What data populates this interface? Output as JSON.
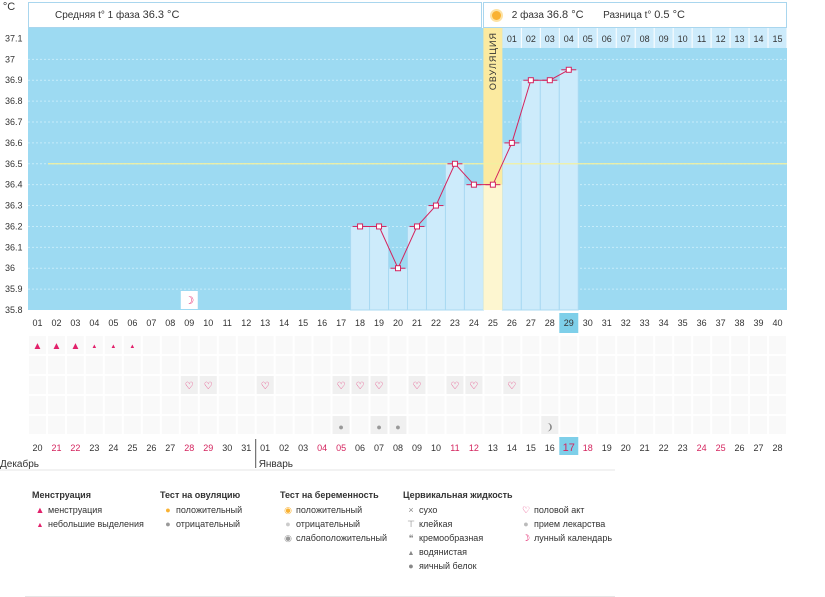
{
  "ylabel": "°C",
  "yticks": [
    "37.1",
    "37",
    "36.9",
    "36.8",
    "36.7",
    "36.6",
    "36.5",
    "36.4",
    "36.3",
    "36.2",
    "36.1",
    "36",
    "35.9",
    "35.8"
  ],
  "phase1": {
    "label": "Средняя t° 1 фаза",
    "value": "36.3 °C"
  },
  "phase2": {
    "label": "2 фаза",
    "value": "36.8 °C"
  },
  "diff": {
    "label": "Разница t°",
    "value": "0.5 °C"
  },
  "ovulation_label": "ОВУЛЯЦИЯ",
  "cycle_days": [
    "01",
    "02",
    "03",
    "04",
    "05",
    "06",
    "07",
    "08",
    "09",
    "10",
    "11",
    "12",
    "13",
    "14",
    "15",
    "16",
    "17",
    "18",
    "19",
    "20",
    "21",
    "22",
    "23",
    "24",
    "25",
    "26",
    "27",
    "28",
    "29",
    "30",
    "31",
    "32",
    "33",
    "34",
    "35",
    "36",
    "37",
    "38",
    "39",
    "40"
  ],
  "post_ovulation_days": [
    "01",
    "02",
    "03",
    "04",
    "05",
    "06",
    "07",
    "08",
    "09",
    "10",
    "11",
    "12",
    "13",
    "14",
    "15"
  ],
  "current_cycle_day": 29,
  "ovulation_day": 25,
  "calendar_dates": [
    "20",
    "21",
    "22",
    "23",
    "24",
    "25",
    "26",
    "27",
    "28",
    "29",
    "30",
    "31",
    "01",
    "02",
    "03",
    "04",
    "05",
    "06",
    "07",
    "08",
    "09",
    "10",
    "11",
    "12",
    "13",
    "14",
    "15",
    "16",
    "17",
    "18",
    "19",
    "20",
    "21",
    "22",
    "23",
    "24",
    "25",
    "26",
    "27",
    "28"
  ],
  "red_dates_idx": [
    1,
    2,
    8,
    9,
    15,
    16,
    22,
    23,
    28,
    29,
    35,
    36
  ],
  "month_dec": "Декабрь",
  "month_jan": "Январь",
  "colors": {
    "plot_bg": "#9ddaf2",
    "bar_fill": "#cdebfb",
    "line": "#d4245e",
    "ovulation": "#fbeaa0",
    "avg_line": "#f2f0a0",
    "today": "#7ecfe9"
  },
  "chart_data": {
    "type": "line",
    "title": "",
    "xlabel": "",
    "ylabel": "°C",
    "ylim": [
      35.8,
      37.15
    ],
    "x": [
      18,
      19,
      20,
      21,
      22,
      23,
      24,
      25,
      26,
      27,
      28,
      29
    ],
    "y": [
      36.2,
      36.2,
      36.0,
      36.2,
      36.3,
      36.5,
      36.4,
      36.4,
      36.6,
      36.9,
      36.9,
      36.95
    ],
    "average_line": 36.5,
    "ovulation_day": 25
  },
  "marks": {
    "menstruation": [
      1,
      2,
      3
    ],
    "light_discharge": [
      4,
      5,
      6
    ],
    "lunar": [
      9
    ],
    "intercourse": [
      9,
      10,
      13,
      17,
      18,
      19,
      21,
      23,
      24,
      26
    ],
    "egg_white": [
      17,
      19,
      20
    ],
    "creamy": [
      28
    ]
  },
  "legend": {
    "menstruation": {
      "title": "Менструация",
      "items": [
        "менструация",
        "небольшие выделения"
      ]
    },
    "ovulation_test": {
      "title": "Тест на овуляцию",
      "items": [
        "положительный",
        "отрицательный"
      ]
    },
    "pregnancy_test": {
      "title": "Тест на беременность",
      "items": [
        "положительный",
        "отрицательный",
        "слабоположительный"
      ]
    },
    "cervical": {
      "title": "Цервикальная жидкость",
      "items": [
        "сухо",
        "клейкая",
        "кремообразная",
        "водянистая",
        "яичный белок"
      ]
    },
    "other": {
      "items": [
        "половой акт",
        "прием лекарства",
        "лунный календарь"
      ]
    }
  }
}
